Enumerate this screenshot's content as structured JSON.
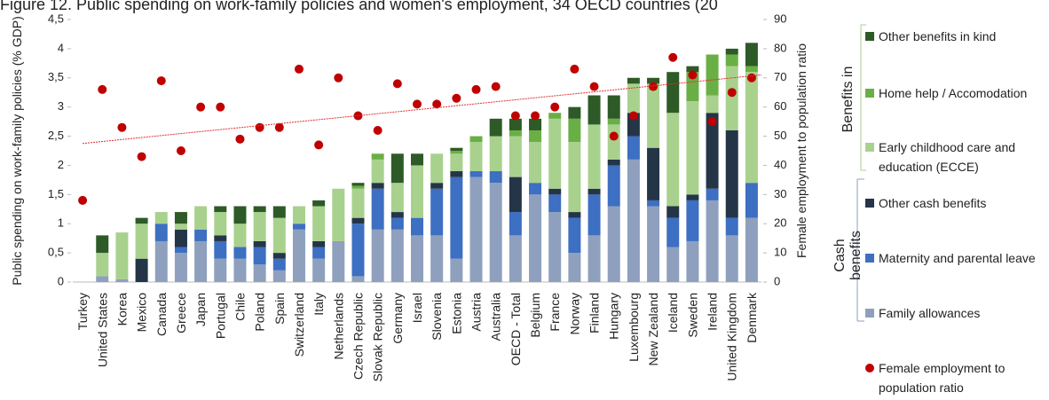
{
  "chart_data": {
    "type": "bar",
    "stacked": true,
    "title": "Figure 12. Public spending on work-family policies and women's employment, 34 OECD countries (20",
    "y_label": "Public spending on work-family policies (% GDP)",
    "y2_label": "Female employment to population ratio",
    "legend_groups": [
      "Benefits in",
      "Cash benefits"
    ],
    "categories": [
      "Turkey",
      "United States",
      "Korea",
      "Mexico",
      "Canada",
      "Greece",
      "Japan",
      "Portugal",
      "Chile",
      "Poland",
      "Spain",
      "Switzerland",
      "Italy",
      "Netherlands",
      "Czech Republic",
      "Slovak Republic",
      "Germany",
      "Israel",
      "Slovenia",
      "Estonia",
      "Austria",
      "Australia",
      "OECD - Total",
      "Belgium",
      "France",
      "Norway",
      "Finland",
      "Hungary",
      "Luxembourg",
      "New Zealand",
      "Iceland",
      "Sweden",
      "Ireland",
      "United Kingdom",
      "Denmark"
    ],
    "series": [
      {
        "name": "Family allowances",
        "color": "#8ea0bd",
        "values": [
          0,
          0.1,
          0.05,
          0,
          0.7,
          0.5,
          0.7,
          0.4,
          0.4,
          0.3,
          0.2,
          0.9,
          0.4,
          0.7,
          0.1,
          0.9,
          0.9,
          0.8,
          0.8,
          0.4,
          1.8,
          1.7,
          0.8,
          1.5,
          1.2,
          0.5,
          0.8,
          1.3,
          2.1,
          1.3,
          0.6,
          0.7,
          1.4,
          0.8,
          1.1
        ]
      },
      {
        "name": "Maternity and parental leave",
        "color": "#3d6fc2",
        "values": [
          0,
          0,
          0,
          0,
          0.3,
          0.1,
          0.2,
          0.3,
          0.2,
          0.3,
          0.2,
          0.1,
          0.2,
          0,
          0.9,
          0.7,
          0.2,
          0.3,
          0.8,
          1.4,
          0.1,
          0.2,
          0.4,
          0.2,
          0.3,
          0.6,
          0.7,
          0.7,
          0.4,
          0.1,
          0.5,
          0.7,
          0.2,
          0.3,
          0.6
        ]
      },
      {
        "name": "Other cash benefits",
        "color": "#253548",
        "values": [
          0,
          0,
          0,
          0.4,
          0,
          0.3,
          0,
          0.1,
          0,
          0.1,
          0.1,
          0,
          0.1,
          0,
          0.1,
          0.1,
          0.1,
          0,
          0.1,
          0.1,
          0,
          0,
          0.6,
          0,
          0.1,
          0.1,
          0.1,
          0.1,
          0.4,
          0.9,
          0.2,
          0.1,
          1.3,
          1.5,
          0
        ]
      },
      {
        "name": "Early childhood care and education (ECCE)",
        "color": "#a9d18e",
        "values": [
          0,
          0.4,
          0.8,
          0.6,
          0.2,
          0.1,
          0.4,
          0.4,
          0.4,
          0.5,
          0.6,
          0.3,
          0.6,
          0.9,
          0.5,
          0.4,
          0.5,
          0.9,
          0.5,
          0.3,
          0.5,
          0.6,
          0.7,
          0.7,
          1.2,
          1.2,
          1.1,
          0.6,
          0.5,
          1.1,
          1.6,
          1.6,
          0.3,
          1.1,
          1.9
        ]
      },
      {
        "name": "Home help / Accomodation",
        "color": "#6aaf45",
        "values": [
          0,
          0,
          0,
          0,
          0,
          0,
          0,
          0,
          0,
          0,
          0,
          0,
          0,
          0,
          0.05,
          0.1,
          0,
          0,
          0,
          0.05,
          0.1,
          0,
          0.1,
          0.2,
          0.1,
          0.4,
          0,
          0.1,
          0,
          0,
          0,
          0.5,
          0.7,
          0.2,
          0.1
        ]
      },
      {
        "name": "Other benefits in kind",
        "color": "#2e5a27",
        "values": [
          0,
          0.3,
          0,
          0.1,
          0,
          0.2,
          0,
          0.1,
          0.3,
          0.1,
          0.2,
          0,
          0.1,
          0,
          0.05,
          0,
          0.5,
          0.2,
          0,
          0.05,
          0,
          0.3,
          0.2,
          0.2,
          0,
          0.2,
          0.5,
          0.4,
          0.1,
          0.1,
          0.7,
          0.1,
          0,
          0.1,
          0.4
        ]
      },
      {
        "name": "Female employment to population ratio",
        "type": "scatter",
        "axis": "y2",
        "color": "#c00000",
        "values": [
          28,
          66,
          53,
          43,
          69,
          45,
          60,
          60,
          49,
          53,
          53,
          73,
          47,
          70,
          57,
          52,
          68,
          61,
          61,
          63,
          66,
          67,
          57,
          57,
          60,
          73,
          67,
          50,
          57,
          67,
          77,
          71,
          55,
          65,
          70
        ]
      }
    ],
    "trendline": {
      "axis": "y2",
      "color": "#e03030",
      "start": 47.5,
      "end": 71
    },
    "ylim": [
      0,
      4.5
    ],
    "yticks": [
      0,
      {
        "value": 0.5,
        "label": "0,5"
      },
      1,
      {
        "value": 1.5,
        "label": "1,5"
      },
      2,
      {
        "value": 2.5,
        "label": "2,5"
      },
      3,
      {
        "value": 3.5,
        "label": "3,5"
      },
      4,
      {
        "value": 4.5,
        "label": "4,5"
      }
    ],
    "y2lim": [
      0,
      90
    ],
    "y2ticks": [
      0,
      10,
      20,
      30,
      40,
      50,
      60,
      70,
      80,
      90
    ],
    "grid": false
  }
}
